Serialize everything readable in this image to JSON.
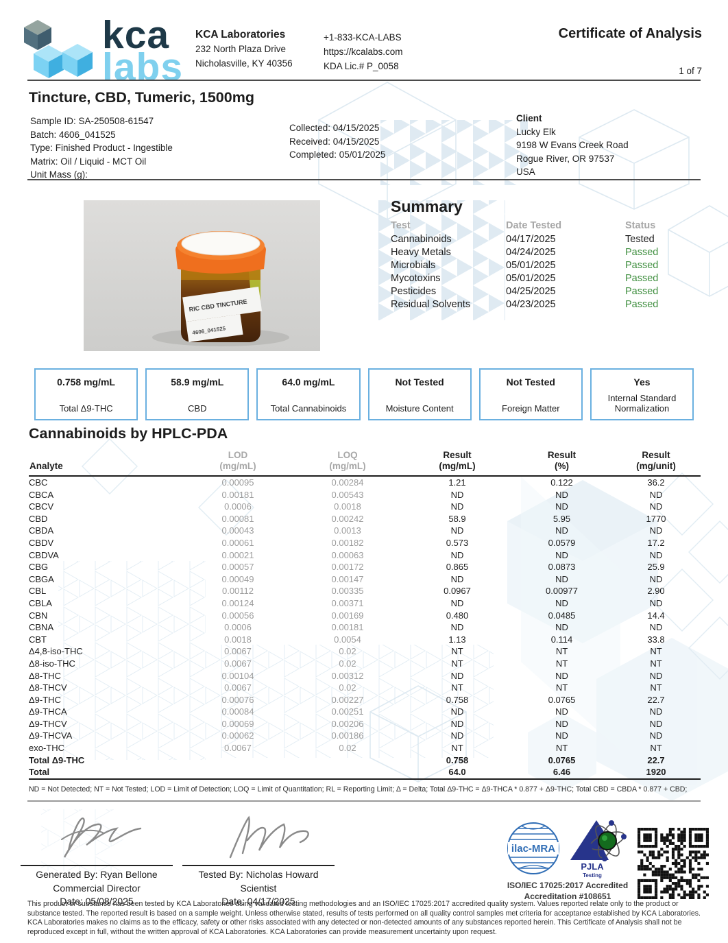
{
  "colors": {
    "accent_blue": "#6ab0e0",
    "passed_green": "#3e8e3e",
    "logo_navy": "#1e3948",
    "logo_lightblue": "#7fd0ee",
    "lid_orange": "#ef6f1e"
  },
  "header": {
    "logo_kca": "kca",
    "logo_labs": "labs",
    "lab_name": "KCA Laboratories",
    "address1": "232 North Plaza Drive",
    "address2": "Nicholasville, KY 40356",
    "phone": "+1-833-KCA-LABS",
    "website": "https://kcalabs.com",
    "license": "KDA Lic.# P_0058",
    "title": "Certificate of Analysis",
    "page": "1 of 7"
  },
  "sample": {
    "product_title": "Tincture, CBD, Tumeric, 1500mg",
    "info_lines": [
      {
        "text": "Sample ID: SA-250508-61547"
      },
      {
        "text": "Batch: 4606_041525"
      },
      {
        "text": "Type: Finished Product - Ingestible"
      },
      {
        "text": "Matrix: Oil / Liquid - MCT Oil"
      },
      {
        "text": "Unit Mass (g):"
      }
    ],
    "date_lines": [
      {
        "text": "Collected: 04/15/2025"
      },
      {
        "text": "Received: 04/15/2025"
      },
      {
        "text": "Completed: 05/01/2025"
      }
    ],
    "client_label": "Client",
    "client_lines": [
      {
        "text": "Lucky Elk"
      },
      {
        "text": "9198 W Evans Creek Road"
      },
      {
        "text": "Rogue River, OR 97537"
      },
      {
        "text": "USA"
      }
    ]
  },
  "photo": {
    "label_line1": "RIC CBD TINCTURE",
    "label_line2": "4606_041525"
  },
  "summary": {
    "title": "Summary",
    "headers": {
      "test": "Test",
      "date": "Date Tested",
      "status": "Status"
    },
    "rows": [
      {
        "test": "Cannabinoids",
        "date": "04/17/2025",
        "status": "Tested",
        "status_class": "dark"
      },
      {
        "test": "Heavy Metals",
        "date": "04/24/2025",
        "status": "Passed",
        "status_class": "green"
      },
      {
        "test": "Microbials",
        "date": "05/01/2025",
        "status": "Passed",
        "status_class": "green"
      },
      {
        "test": "Mycotoxins",
        "date": "05/01/2025",
        "status": "Passed",
        "status_class": "green"
      },
      {
        "test": "Pesticides",
        "date": "04/25/2025",
        "status": "Passed",
        "status_class": "green"
      },
      {
        "test": "Residual Solvents",
        "date": "04/23/2025",
        "status": "Passed",
        "status_class": "green"
      }
    ]
  },
  "boxes": {
    "items": [
      {
        "value": "0.758 mg/mL",
        "label": "Total Δ9-THC"
      },
      {
        "value": "58.9 mg/mL",
        "label": "CBD"
      },
      {
        "value": "64.0 mg/mL",
        "label": "Total Cannabinoids"
      },
      {
        "value": "Not Tested",
        "label": "Moisture Content"
      },
      {
        "value": "Not Tested",
        "label": "Foreign Matter"
      },
      {
        "value": "Yes",
        "label": "Internal Standard Normalization"
      }
    ]
  },
  "cannabinoids": {
    "title": "Cannabinoids by HPLC-PDA",
    "headers": {
      "analyte": "Analyte",
      "lod1": "LOD",
      "lod2": "(mg/mL)",
      "loq1": "LOQ",
      "loq2": "(mg/mL)",
      "r1a": "Result",
      "r1b": "(mg/mL)",
      "r2a": "Result",
      "r2b": "(%)",
      "r3a": "Result",
      "r3b": "(mg/unit)"
    },
    "rows": [
      {
        "analyte": "CBC",
        "lod": "0.00095",
        "loq": "0.00284",
        "mgml": "1.21",
        "pct": "0.122",
        "mgunit": "36.2",
        "row_class": ""
      },
      {
        "analyte": "CBCA",
        "lod": "0.00181",
        "loq": "0.00543",
        "mgml": "ND",
        "pct": "ND",
        "mgunit": "ND",
        "row_class": ""
      },
      {
        "analyte": "CBCV",
        "lod": "0.0006",
        "loq": "0.0018",
        "mgml": "ND",
        "pct": "ND",
        "mgunit": "ND",
        "row_class": ""
      },
      {
        "analyte": "CBD",
        "lod": "0.00081",
        "loq": "0.00242",
        "mgml": "58.9",
        "pct": "5.95",
        "mgunit": "1770",
        "row_class": ""
      },
      {
        "analyte": "CBDA",
        "lod": "0.00043",
        "loq": "0.0013",
        "mgml": "ND",
        "pct": "ND",
        "mgunit": "ND",
        "row_class": ""
      },
      {
        "analyte": "CBDV",
        "lod": "0.00061",
        "loq": "0.00182",
        "mgml": "0.573",
        "pct": "0.0579",
        "mgunit": "17.2",
        "row_class": ""
      },
      {
        "analyte": "CBDVA",
        "lod": "0.00021",
        "loq": "0.00063",
        "mgml": "ND",
        "pct": "ND",
        "mgunit": "ND",
        "row_class": ""
      },
      {
        "analyte": "CBG",
        "lod": "0.00057",
        "loq": "0.00172",
        "mgml": "0.865",
        "pct": "0.0873",
        "mgunit": "25.9",
        "row_class": ""
      },
      {
        "analyte": "CBGA",
        "lod": "0.00049",
        "loq": "0.00147",
        "mgml": "ND",
        "pct": "ND",
        "mgunit": "ND",
        "row_class": ""
      },
      {
        "analyte": "CBL",
        "lod": "0.00112",
        "loq": "0.00335",
        "mgml": "0.0967",
        "pct": "0.00977",
        "mgunit": "2.90",
        "row_class": ""
      },
      {
        "analyte": "CBLA",
        "lod": "0.00124",
        "loq": "0.00371",
        "mgml": "ND",
        "pct": "ND",
        "mgunit": "ND",
        "row_class": ""
      },
      {
        "analyte": "CBN",
        "lod": "0.00056",
        "loq": "0.00169",
        "mgml": "0.480",
        "pct": "0.0485",
        "mgunit": "14.4",
        "row_class": ""
      },
      {
        "analyte": "CBNA",
        "lod": "0.0006",
        "loq": "0.00181",
        "mgml": "ND",
        "pct": "ND",
        "mgunit": "ND",
        "row_class": ""
      },
      {
        "analyte": "CBT",
        "lod": "0.0018",
        "loq": "0.0054",
        "mgml": "1.13",
        "pct": "0.114",
        "mgunit": "33.8",
        "row_class": ""
      },
      {
        "analyte": "Δ4,8-iso-THC",
        "lod": "0.0067",
        "loq": "0.02",
        "mgml": "NT",
        "pct": "NT",
        "mgunit": "NT",
        "row_class": ""
      },
      {
        "analyte": "Δ8-iso-THC",
        "lod": "0.0067",
        "loq": "0.02",
        "mgml": "NT",
        "pct": "NT",
        "mgunit": "NT",
        "row_class": ""
      },
      {
        "analyte": "Δ8-THC",
        "lod": "0.00104",
        "loq": "0.00312",
        "mgml": "ND",
        "pct": "ND",
        "mgunit": "ND",
        "row_class": ""
      },
      {
        "analyte": "Δ8-THCV",
        "lod": "0.0067",
        "loq": "0.02",
        "mgml": "NT",
        "pct": "NT",
        "mgunit": "NT",
        "row_class": ""
      },
      {
        "analyte": "Δ9-THC",
        "lod": "0.00076",
        "loq": "0.00227",
        "mgml": "0.758",
        "pct": "0.0765",
        "mgunit": "22.7",
        "row_class": ""
      },
      {
        "analyte": "Δ9-THCA",
        "lod": "0.00084",
        "loq": "0.00251",
        "mgml": "ND",
        "pct": "ND",
        "mgunit": "ND",
        "row_class": ""
      },
      {
        "analyte": "Δ9-THCV",
        "lod": "0.00069",
        "loq": "0.00206",
        "mgml": "ND",
        "pct": "ND",
        "mgunit": "ND",
        "row_class": ""
      },
      {
        "analyte": "Δ9-THCVA",
        "lod": "0.00062",
        "loq": "0.00186",
        "mgml": "ND",
        "pct": "ND",
        "mgunit": "ND",
        "row_class": ""
      },
      {
        "analyte": "exo-THC",
        "lod": "0.0067",
        "loq": "0.02",
        "mgml": "NT",
        "pct": "NT",
        "mgunit": "NT",
        "row_class": ""
      },
      {
        "analyte": "Total Δ9-THC",
        "lod": "",
        "loq": "",
        "mgml": "0.758",
        "pct": "0.0765",
        "mgunit": "22.7",
        "row_class": "total-row"
      },
      {
        "analyte": "Total",
        "lod": "",
        "loq": "",
        "mgml": "64.0",
        "pct": "6.46",
        "mgunit": "1920",
        "row_class": "total-row"
      }
    ],
    "footnote": "ND = Not Detected; NT = Not Tested; LOD = Limit of Detection; LOQ = Limit of Quantitation; RL = Reporting Limit; Δ = Delta; Total Δ9-THC = Δ9-THCA * 0.877 + Δ9-THC; Total CBD = CBDA * 0.877 + CBD;"
  },
  "signatures": {
    "generated": {
      "line1": "Generated By: Ryan Bellone",
      "line2": "Commercial Director",
      "line3": "Date: 05/08/2025"
    },
    "tested": {
      "line1": "Tested By: Nicholas Howard",
      "line2": "Scientist",
      "line3": "Date: 04/17/2025"
    }
  },
  "accreditation": {
    "ilac_label": "ilac-MRA",
    "pjla_label": "PJLA",
    "pjla_sub": "Testing",
    "iso_line1": "ISO/IEC 17025:2017 Accredited",
    "iso_line2": "Accreditation #108651"
  },
  "disclaimer": "This product or substance has been tested by KCA Laboratories using validated testing methodologies and an ISO/IEC 17025:2017 accredited quality system. Values reported relate only to the product or substance tested. The reported result is based on a sample weight. Unless otherwise stated, results of tests performed on all quality control samples met criteria for acceptance established by KCA Laboratories. KCA Laboratories makes no claims as to the efficacy, safety or other risks associated with any detected or non-detected amounts of any substances reported herein. This Certificate of Analysis shall not be reproduced except in full, without the written approval of KCA Laboratories. KCA Laboratories can provide measurement uncertainty upon request."
}
